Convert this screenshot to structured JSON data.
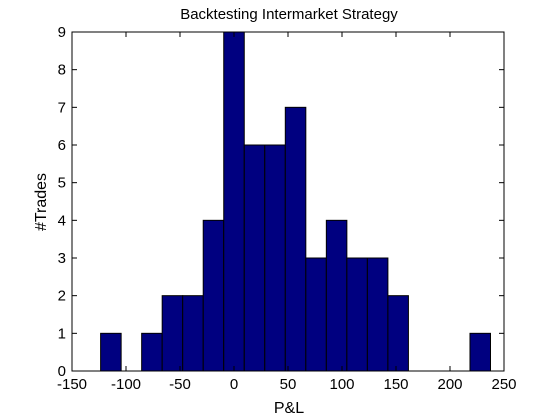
{
  "chart_data": {
    "type": "bar",
    "title": "Backtesting Intermarket Strategy",
    "xlabel": "P&L",
    "ylabel": "#Trades",
    "xlim": [
      -150,
      250
    ],
    "ylim": [
      0,
      9
    ],
    "xticks": [
      -150,
      -100,
      -50,
      0,
      50,
      100,
      150,
      200,
      250
    ],
    "yticks": [
      0,
      1,
      2,
      3,
      4,
      5,
      6,
      7,
      8,
      9
    ],
    "bin_width": 19,
    "bin_centers": [
      -114,
      -95,
      -76,
      -57,
      -38,
      -19,
      0,
      19,
      38,
      57,
      76,
      95,
      114,
      133,
      152,
      171,
      190,
      209,
      228
    ],
    "counts": [
      1,
      0,
      1,
      2,
      2,
      4,
      9,
      6,
      6,
      7,
      3,
      4,
      3,
      3,
      2,
      0,
      0,
      0,
      1
    ],
    "bar_color": "#000080",
    "edge_color": "#000000",
    "grid": false,
    "legend": "none"
  }
}
